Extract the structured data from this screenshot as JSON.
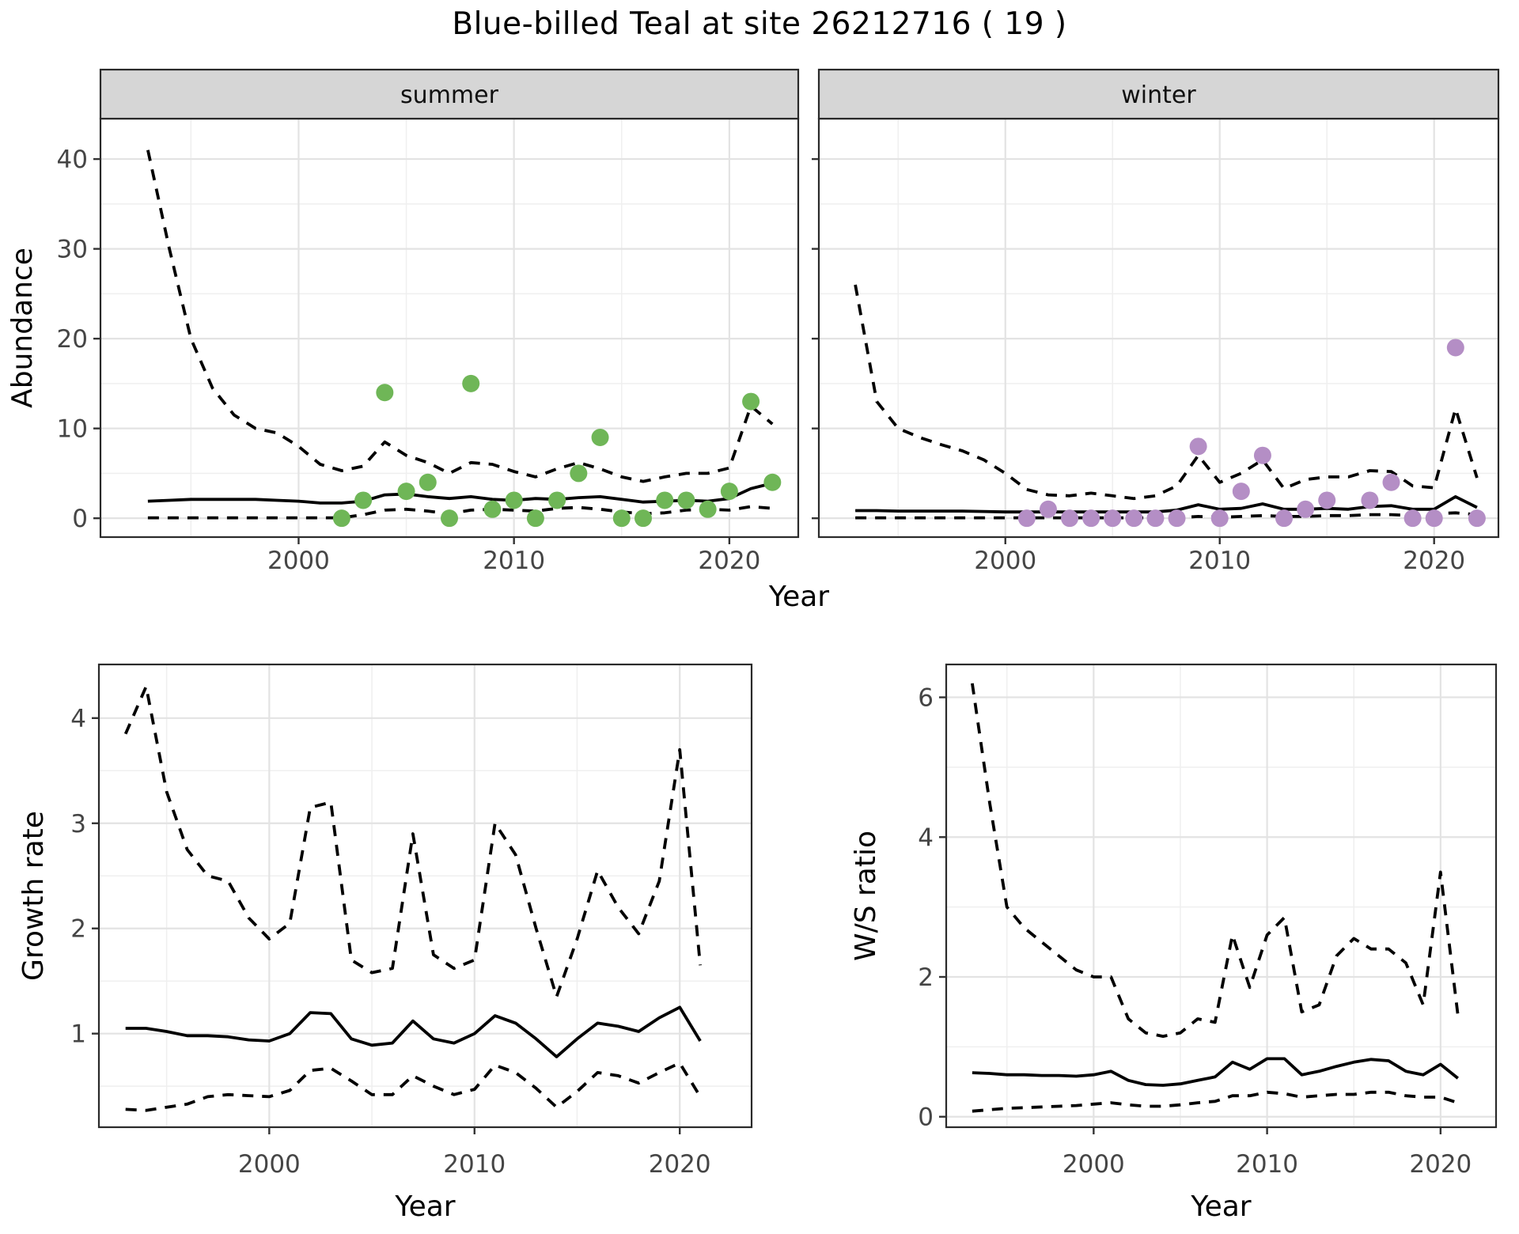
{
  "figure": {
    "title": "Blue-billed Teal at site 26212716 ( 19 )"
  },
  "style": {
    "summer_point_color": "#6FB657",
    "winter_point_color": "#B48EC5",
    "line_color": "#000000",
    "grid_major_color": "#E3E3E3",
    "grid_minor_color": "#EFEFEF",
    "strip_bg": "#D6D6D6",
    "strip_border": "#2A2A2A",
    "panel_border": "#2A2A2A",
    "axis_text_color": "#454545",
    "tick_mark_color": "#333333",
    "title_color": "#000000"
  },
  "chart_data": [
    {
      "id": "abundance-summer",
      "type": "line",
      "facet_label": "summer",
      "x_axis": {
        "title": "Year",
        "ticks": [
          2000,
          2010,
          2020
        ],
        "minor_ticks": [
          1995,
          2005,
          2015
        ],
        "range": [
          1990.8,
          2023.2
        ]
      },
      "y_axis": {
        "title": "Abundance",
        "ticks": [
          0,
          10,
          20,
          30,
          40
        ],
        "minor_ticks": [
          5,
          15,
          25,
          35
        ],
        "range": [
          -2.1,
          44.5
        ]
      },
      "series": [
        {
          "name": "upper-95ci",
          "style": "dashed",
          "years": [
            1993,
            1994,
            1995,
            1996,
            1997,
            1998,
            1999,
            2000,
            2001,
            2002,
            2003,
            2004,
            2005,
            2006,
            2007,
            2008,
            2009,
            2010,
            2011,
            2012,
            2013,
            2014,
            2015,
            2016,
            2017,
            2018,
            2019,
            2020,
            2021,
            2022
          ],
          "values": [
            41,
            30,
            20,
            14.5,
            11.5,
            10,
            9.5,
            8,
            6,
            5.3,
            5.8,
            8.5,
            7,
            6.2,
            5,
            6.2,
            6,
            5.2,
            4.6,
            5.5,
            6.2,
            5.5,
            4.6,
            4.1,
            4.6,
            5,
            5,
            5.6,
            12.5,
            10.5
          ]
        },
        {
          "name": "median",
          "style": "solid",
          "years": [
            1993,
            1994,
            1995,
            1996,
            1997,
            1998,
            1999,
            2000,
            2001,
            2002,
            2003,
            2004,
            2005,
            2006,
            2007,
            2008,
            2009,
            2010,
            2011,
            2012,
            2013,
            2014,
            2015,
            2016,
            2017,
            2018,
            2019,
            2020,
            2021,
            2022
          ],
          "values": [
            1.9,
            2.0,
            2.1,
            2.1,
            2.1,
            2.1,
            2.0,
            1.9,
            1.7,
            1.7,
            1.9,
            2.6,
            2.7,
            2.4,
            2.2,
            2.4,
            2.1,
            2.0,
            2.2,
            2.1,
            2.3,
            2.4,
            2.1,
            1.8,
            1.9,
            2.0,
            1.9,
            2.2,
            3.3,
            3.9
          ]
        },
        {
          "name": "lower-95ci",
          "style": "dashed",
          "years": [
            1993,
            1994,
            1995,
            1996,
            1997,
            1998,
            1999,
            2000,
            2001,
            2002,
            2003,
            2004,
            2005,
            2006,
            2007,
            2008,
            2009,
            2010,
            2011,
            2012,
            2013,
            2014,
            2015,
            2016,
            2017,
            2018,
            2019,
            2020,
            2021,
            2022
          ],
          "values": [
            0.05,
            0.05,
            0.05,
            0.05,
            0.05,
            0.05,
            0.05,
            0.05,
            0.05,
            0.05,
            0.4,
            0.9,
            1.0,
            0.8,
            0.5,
            0.9,
            1.0,
            0.9,
            0.8,
            1.1,
            1.2,
            1.0,
            0.7,
            0.5,
            0.6,
            0.9,
            1.0,
            0.9,
            1.3,
            1.1
          ]
        },
        {
          "name": "observed-counts",
          "style": "points",
          "color_key": "summer_point_color",
          "years": [
            2002,
            2003,
            2004,
            2005,
            2006,
            2007,
            2008,
            2009,
            2010,
            2011,
            2012,
            2013,
            2014,
            2015,
            2016,
            2017,
            2018,
            2019,
            2020,
            2021,
            2022
          ],
          "values": [
            0,
            2,
            14,
            3,
            4,
            0,
            15,
            1,
            2,
            0,
            2,
            5,
            9,
            0,
            0,
            2,
            2,
            1,
            3,
            13,
            4
          ]
        }
      ]
    },
    {
      "id": "abundance-winter",
      "type": "line",
      "facet_label": "winter",
      "x_axis": {
        "title": "Year",
        "ticks": [
          2000,
          2010,
          2020
        ],
        "minor_ticks": [
          1995,
          2005,
          2015
        ],
        "range": [
          1991.3,
          2023.0
        ]
      },
      "y_axis": {
        "title": "",
        "ticks": [
          0,
          10,
          20,
          30,
          40
        ],
        "minor_ticks": [
          5,
          15,
          25,
          35
        ],
        "range": [
          -2.1,
          44.5
        ]
      },
      "series": [
        {
          "name": "upper-95ci",
          "style": "dashed",
          "years": [
            1993,
            1994,
            1995,
            1996,
            1997,
            1998,
            1999,
            2000,
            2001,
            2002,
            2003,
            2004,
            2005,
            2006,
            2007,
            2008,
            2009,
            2010,
            2011,
            2012,
            2013,
            2014,
            2015,
            2016,
            2017,
            2018,
            2019,
            2020,
            2021,
            2022
          ],
          "values": [
            26,
            13,
            10,
            9,
            8.2,
            7.5,
            6.5,
            5,
            3.2,
            2.6,
            2.5,
            2.8,
            2.5,
            2.2,
            2.5,
            3.6,
            7,
            4,
            5,
            6.5,
            3.3,
            4.3,
            4.6,
            4.6,
            5.3,
            5.2,
            3.6,
            3.4,
            12.2,
            4.5
          ]
        },
        {
          "name": "median",
          "style": "solid",
          "years": [
            1993,
            1994,
            1995,
            1996,
            1997,
            1998,
            1999,
            2000,
            2001,
            2002,
            2003,
            2004,
            2005,
            2006,
            2007,
            2008,
            2009,
            2010,
            2011,
            2012,
            2013,
            2014,
            2015,
            2016,
            2017,
            2018,
            2019,
            2020,
            2021,
            2022
          ],
          "values": [
            0.85,
            0.85,
            0.8,
            0.8,
            0.8,
            0.8,
            0.75,
            0.7,
            0.7,
            0.7,
            0.7,
            0.7,
            0.7,
            0.7,
            0.7,
            0.9,
            1.5,
            1.0,
            1.1,
            1.6,
            1.0,
            1.0,
            1.1,
            1.0,
            1.3,
            1.4,
            1.0,
            1.0,
            2.4,
            1.2
          ]
        },
        {
          "name": "lower-95ci",
          "style": "dashed",
          "years": [
            1993,
            1994,
            1995,
            1996,
            1997,
            1998,
            1999,
            2000,
            2001,
            2002,
            2003,
            2004,
            2005,
            2006,
            2007,
            2008,
            2009,
            2010,
            2011,
            2012,
            2013,
            2014,
            2015,
            2016,
            2017,
            2018,
            2019,
            2020,
            2021,
            2022
          ],
          "values": [
            0.05,
            0.05,
            0.05,
            0.05,
            0.05,
            0.05,
            0.05,
            0.05,
            0.05,
            0.05,
            0.05,
            0.05,
            0.05,
            0.05,
            0.05,
            0.05,
            0.2,
            0.1,
            0.2,
            0.3,
            0.2,
            0.2,
            0.3,
            0.3,
            0.4,
            0.4,
            0.3,
            0.5,
            0.6,
            0.4
          ]
        },
        {
          "name": "observed-counts",
          "style": "points",
          "color_key": "winter_point_color",
          "years": [
            2001,
            2002,
            2003,
            2004,
            2005,
            2006,
            2007,
            2008,
            2009,
            2010,
            2011,
            2012,
            2013,
            2014,
            2015,
            2017,
            2018,
            2019,
            2020,
            2021,
            2022
          ],
          "values": [
            0,
            1,
            0,
            0,
            0,
            0,
            0,
            0,
            8,
            0,
            3,
            7,
            0,
            1,
            2,
            2,
            4,
            0,
            0,
            19,
            0
          ]
        }
      ]
    },
    {
      "id": "growth-rate",
      "type": "line",
      "facet_label": "",
      "x_axis": {
        "title": "Year",
        "ticks": [
          2000,
          2010,
          2020
        ],
        "minor_ticks": [
          1995,
          2005,
          2015
        ],
        "range": [
          1991.7,
          2023.5
        ]
      },
      "y_axis": {
        "title": "Growth rate",
        "ticks": [
          1,
          2,
          3,
          4
        ],
        "minor_ticks": [
          0.5,
          1.5,
          2.5,
          3.5
        ],
        "range": [
          0.11,
          4.51
        ]
      },
      "series": [
        {
          "name": "upper-95ci",
          "style": "dashed",
          "years": [
            1993,
            1994,
            1995,
            1996,
            1997,
            1998,
            1999,
            2000,
            2001,
            2002,
            2003,
            2004,
            2005,
            2006,
            2007,
            2008,
            2009,
            2010,
            2011,
            2012,
            2013,
            2014,
            2015,
            2016,
            2017,
            2018,
            2019,
            2020,
            2021
          ],
          "values": [
            3.85,
            4.3,
            3.3,
            2.75,
            2.5,
            2.45,
            2.1,
            1.9,
            2.05,
            3.15,
            3.2,
            1.7,
            1.58,
            1.62,
            2.9,
            1.75,
            1.62,
            1.7,
            3.0,
            2.7,
            2.0,
            1.35,
            1.9,
            2.55,
            2.2,
            1.95,
            2.45,
            3.7,
            1.65
          ]
        },
        {
          "name": "median",
          "style": "solid",
          "years": [
            1993,
            1994,
            1995,
            1996,
            1997,
            1998,
            1999,
            2000,
            2001,
            2002,
            2003,
            2004,
            2005,
            2006,
            2007,
            2008,
            2009,
            2010,
            2011,
            2012,
            2013,
            2014,
            2015,
            2016,
            2017,
            2018,
            2019,
            2020,
            2021
          ],
          "values": [
            1.05,
            1.05,
            1.02,
            0.98,
            0.98,
            0.97,
            0.94,
            0.93,
            1.0,
            1.2,
            1.19,
            0.95,
            0.89,
            0.91,
            1.12,
            0.95,
            0.91,
            1.0,
            1.17,
            1.1,
            0.95,
            0.78,
            0.95,
            1.1,
            1.07,
            1.02,
            1.15,
            1.25,
            0.93
          ]
        },
        {
          "name": "lower-95ci",
          "style": "dashed",
          "years": [
            1993,
            1994,
            1995,
            1996,
            1997,
            1998,
            1999,
            2000,
            2001,
            2002,
            2003,
            2004,
            2005,
            2006,
            2007,
            2008,
            2009,
            2010,
            2011,
            2012,
            2013,
            2014,
            2015,
            2016,
            2017,
            2018,
            2019,
            2020,
            2021
          ],
          "values": [
            0.28,
            0.27,
            0.3,
            0.33,
            0.4,
            0.42,
            0.41,
            0.4,
            0.46,
            0.65,
            0.67,
            0.55,
            0.42,
            0.42,
            0.6,
            0.5,
            0.42,
            0.47,
            0.7,
            0.63,
            0.48,
            0.3,
            0.45,
            0.63,
            0.6,
            0.53,
            0.63,
            0.72,
            0.4
          ]
        }
      ]
    },
    {
      "id": "ws-ratio",
      "type": "line",
      "facet_label": "",
      "x_axis": {
        "title": "Year",
        "ticks": [
          2000,
          2010,
          2020
        ],
        "minor_ticks": [
          1995,
          2005,
          2015
        ],
        "range": [
          1991.5,
          2023.2
        ]
      },
      "y_axis": {
        "title": "W/S ratio",
        "ticks": [
          0,
          2,
          4,
          6
        ],
        "minor_ticks": [
          1,
          3,
          5
        ],
        "range": [
          -0.15,
          6.47
        ]
      },
      "series": [
        {
          "name": "upper-95ci",
          "style": "dashed",
          "years": [
            1993,
            1994,
            1995,
            1996,
            1997,
            1998,
            1999,
            2000,
            2001,
            2002,
            2003,
            2004,
            2005,
            2006,
            2007,
            2008,
            2009,
            2010,
            2011,
            2012,
            2013,
            2014,
            2015,
            2016,
            2017,
            2018,
            2019,
            2020,
            2021
          ],
          "values": [
            6.2,
            4.5,
            3.0,
            2.7,
            2.5,
            2.3,
            2.1,
            2.0,
            2.0,
            1.4,
            1.2,
            1.15,
            1.2,
            1.4,
            1.35,
            2.6,
            1.85,
            2.6,
            2.85,
            1.5,
            1.6,
            2.3,
            2.55,
            2.4,
            2.4,
            2.2,
            1.6,
            3.5,
            1.45
          ]
        },
        {
          "name": "median",
          "style": "solid",
          "years": [
            1993,
            1994,
            1995,
            1996,
            1997,
            1998,
            1999,
            2000,
            2001,
            2002,
            2003,
            2004,
            2005,
            2006,
            2007,
            2008,
            2009,
            2010,
            2011,
            2012,
            2013,
            2014,
            2015,
            2016,
            2017,
            2018,
            2019,
            2020,
            2021
          ],
          "values": [
            0.63,
            0.62,
            0.6,
            0.6,
            0.59,
            0.59,
            0.58,
            0.6,
            0.65,
            0.52,
            0.46,
            0.45,
            0.47,
            0.52,
            0.57,
            0.78,
            0.68,
            0.83,
            0.83,
            0.6,
            0.65,
            0.72,
            0.78,
            0.82,
            0.8,
            0.65,
            0.6,
            0.75,
            0.55
          ]
        },
        {
          "name": "lower-95ci",
          "style": "dashed",
          "years": [
            1993,
            1994,
            1995,
            1996,
            1997,
            1998,
            1999,
            2000,
            2001,
            2002,
            2003,
            2004,
            2005,
            2006,
            2007,
            2008,
            2009,
            2010,
            2011,
            2012,
            2013,
            2014,
            2015,
            2016,
            2017,
            2018,
            2019,
            2020,
            2021
          ],
          "values": [
            0.08,
            0.1,
            0.12,
            0.13,
            0.14,
            0.15,
            0.16,
            0.18,
            0.2,
            0.17,
            0.15,
            0.15,
            0.17,
            0.2,
            0.22,
            0.3,
            0.3,
            0.35,
            0.33,
            0.28,
            0.3,
            0.32,
            0.32,
            0.35,
            0.35,
            0.3,
            0.28,
            0.28,
            0.2
          ]
        }
      ]
    }
  ]
}
